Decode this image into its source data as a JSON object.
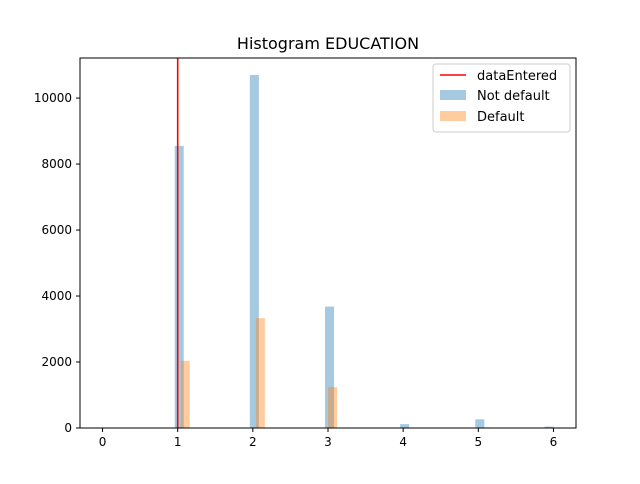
{
  "chart_data": {
    "type": "bar",
    "title": "Histogram EDUCATION",
    "xlabel": "",
    "ylabel": "",
    "xlim": [
      -0.3,
      6.3
    ],
    "ylim": [
      0,
      11214
    ],
    "xticks": [
      0,
      1,
      2,
      3,
      4,
      5,
      6
    ],
    "yticks": [
      0,
      2000,
      4000,
      6000,
      8000,
      10000
    ],
    "xtick_labels": [
      "0",
      "1",
      "2",
      "3",
      "4",
      "5",
      "6"
    ],
    "ytick_labels": [
      "0",
      "2000",
      "4000",
      "6000",
      "8000",
      "10000"
    ],
    "grid": false,
    "legend_position": "top-right",
    "bin_width": 0.12,
    "series": [
      {
        "name": "Not default",
        "color": "#1f77b4",
        "alpha": 0.4,
        "bin_starts": [
          0.0,
          0.96,
          1.96,
          2.96,
          3.96,
          4.96,
          5.88
        ],
        "values": [
          14,
          8549,
          10700,
          3680,
          116,
          262,
          43
        ]
      },
      {
        "name": "Default",
        "color": "#ff7f0e",
        "alpha": 0.4,
        "bin_starts": [
          1.04,
          2.04,
          3.0,
          4.04,
          5.04
        ],
        "values": [
          2036,
          3330,
          1237,
          7,
          18
        ]
      }
    ],
    "vline": {
      "name": "dataEntered",
      "x": 1,
      "color": "#ff0000"
    }
  }
}
